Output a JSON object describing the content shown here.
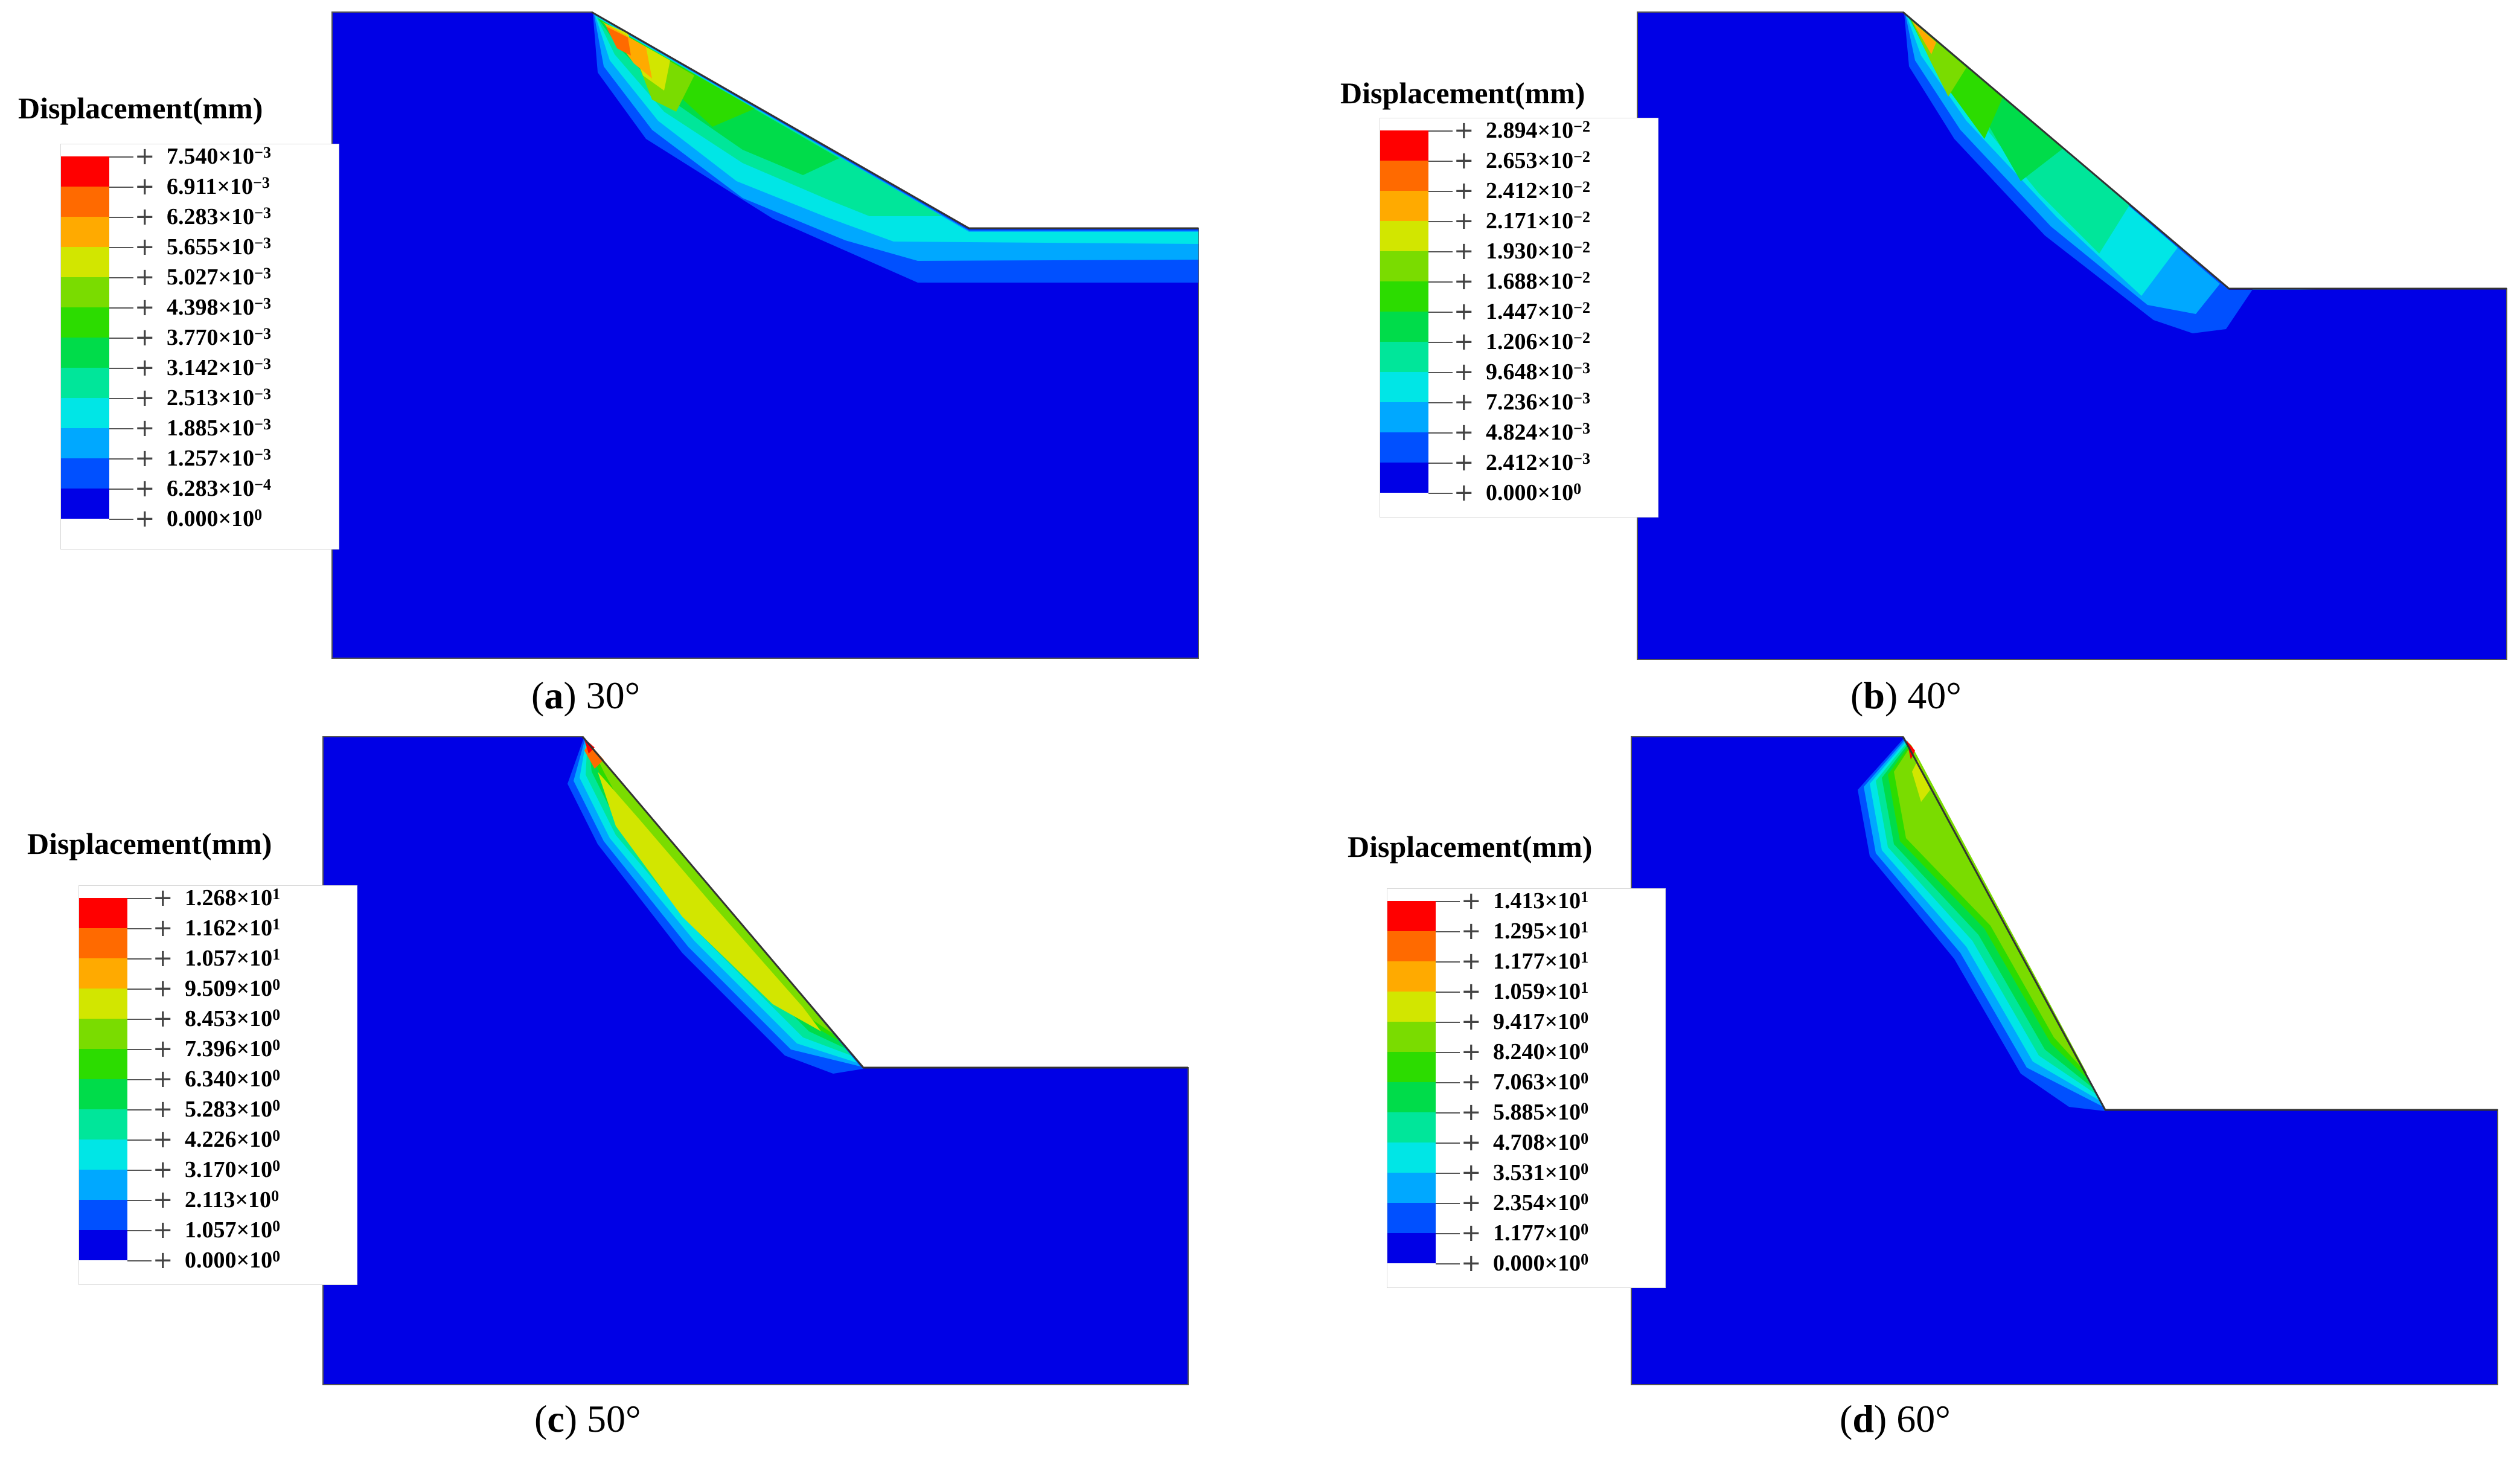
{
  "colors": [
    "#0000E6",
    "#0050FF",
    "#00A8FF",
    "#00E6E6",
    "#00E69A",
    "#00DC4A",
    "#2CDC00",
    "#7ADC00",
    "#D2E600",
    "#FFAA00",
    "#FF6A00",
    "#FF0000"
  ],
  "legend_title": "Displacement(mm)",
  "panels": [
    {
      "id": "a",
      "letter": "a",
      "angle": "30°",
      "ticks": [
        {
          "m": "7.540",
          "e": "−3"
        },
        {
          "m": "6.911",
          "e": "−3"
        },
        {
          "m": "6.283",
          "e": "−3"
        },
        {
          "m": "5.655",
          "e": "−3"
        },
        {
          "m": "5.027",
          "e": "−3"
        },
        {
          "m": "4.398",
          "e": "−3"
        },
        {
          "m": "3.770",
          "e": "−3"
        },
        {
          "m": "3.142",
          "e": "−3"
        },
        {
          "m": "2.513",
          "e": "−3"
        },
        {
          "m": "1.885",
          "e": "−3"
        },
        {
          "m": "1.257",
          "e": "−3"
        },
        {
          "m": "6.283",
          "e": "−4"
        },
        {
          "m": "0.000",
          "e": "0"
        }
      ]
    },
    {
      "id": "b",
      "letter": "b",
      "angle": "40°",
      "ticks": [
        {
          "m": "2.894",
          "e": "−2"
        },
        {
          "m": "2.653",
          "e": "−2"
        },
        {
          "m": "2.412",
          "e": "−2"
        },
        {
          "m": "2.171",
          "e": "−2"
        },
        {
          "m": "1.930",
          "e": "−2"
        },
        {
          "m": "1.688",
          "e": "−2"
        },
        {
          "m": "1.447",
          "e": "−2"
        },
        {
          "m": "1.206",
          "e": "−2"
        },
        {
          "m": "9.648",
          "e": "−3"
        },
        {
          "m": "7.236",
          "e": "−3"
        },
        {
          "m": "4.824",
          "e": "−3"
        },
        {
          "m": "2.412",
          "e": "−3"
        },
        {
          "m": "0.000",
          "e": "0"
        }
      ]
    },
    {
      "id": "c",
      "letter": "c",
      "angle": "50°",
      "ticks": [
        {
          "m": "1.268",
          "e": "1"
        },
        {
          "m": "1.162",
          "e": "1"
        },
        {
          "m": "1.057",
          "e": "1"
        },
        {
          "m": "9.509",
          "e": "0"
        },
        {
          "m": "8.453",
          "e": "0"
        },
        {
          "m": "7.396",
          "e": "0"
        },
        {
          "m": "6.340",
          "e": "0"
        },
        {
          "m": "5.283",
          "e": "0"
        },
        {
          "m": "4.226",
          "e": "0"
        },
        {
          "m": "3.170",
          "e": "0"
        },
        {
          "m": "2.113",
          "e": "0"
        },
        {
          "m": "1.057",
          "e": "0"
        },
        {
          "m": "0.000",
          "e": "0"
        }
      ]
    },
    {
      "id": "d",
      "letter": "d",
      "angle": "60°",
      "ticks": [
        {
          "m": "1.413",
          "e": "1"
        },
        {
          "m": "1.295",
          "e": "1"
        },
        {
          "m": "1.177",
          "e": "1"
        },
        {
          "m": "1.059",
          "e": "1"
        },
        {
          "m": "9.417",
          "e": "0"
        },
        {
          "m": "8.240",
          "e": "0"
        },
        {
          "m": "7.063",
          "e": "0"
        },
        {
          "m": "5.885",
          "e": "0"
        },
        {
          "m": "4.708",
          "e": "0"
        },
        {
          "m": "3.531",
          "e": "0"
        },
        {
          "m": "2.354",
          "e": "0"
        },
        {
          "m": "1.177",
          "e": "0"
        },
        {
          "m": "0.000",
          "e": "0"
        }
      ]
    }
  ]
}
